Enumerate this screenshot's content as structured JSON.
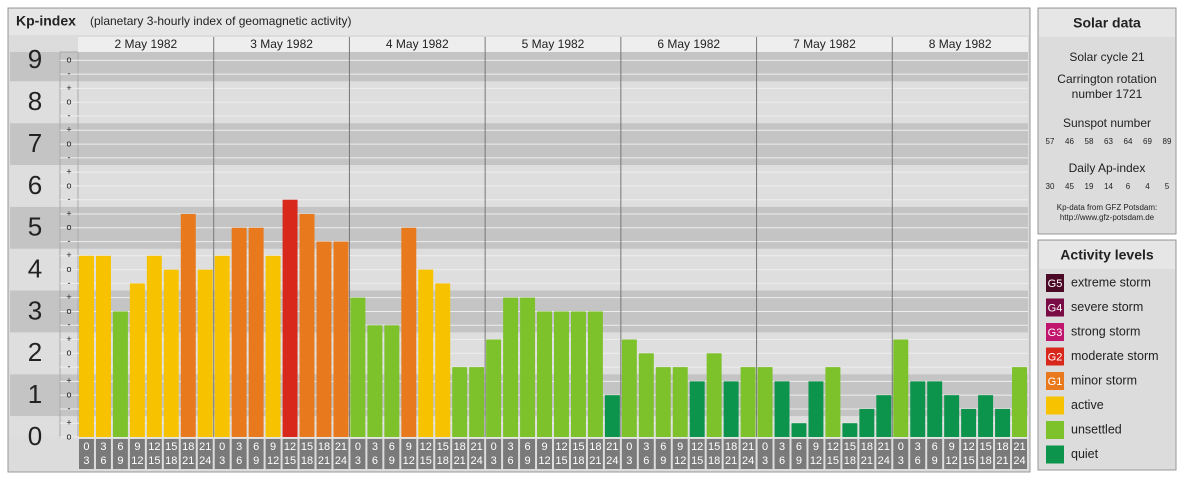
{
  "chart_data": {
    "type": "bar",
    "title": "Kp-index",
    "subtitle": "(planetary 3-hourly index of geomagnetic activity)",
    "ylim": [
      0,
      9.2
    ],
    "yticks": [
      0,
      1,
      2,
      3,
      4,
      5,
      6,
      7,
      8,
      9
    ],
    "ysubticks": [
      {
        "value": 0,
        "label": "o"
      },
      {
        "value": 0.33,
        "label": "+"
      },
      {
        "value": 0.67,
        "label": "-"
      },
      {
        "value": 1,
        "label": "o"
      },
      {
        "value": 1.33,
        "label": "+"
      },
      {
        "value": 1.67,
        "label": "-"
      },
      {
        "value": 2,
        "label": "o"
      },
      {
        "value": 2.33,
        "label": "+"
      },
      {
        "value": 2.67,
        "label": "-"
      },
      {
        "value": 3,
        "label": "o"
      },
      {
        "value": 3.33,
        "label": "+"
      },
      {
        "value": 3.67,
        "label": "-"
      },
      {
        "value": 4,
        "label": "o"
      },
      {
        "value": 4.33,
        "label": "+"
      },
      {
        "value": 4.67,
        "label": "-"
      },
      {
        "value": 5,
        "label": "o"
      },
      {
        "value": 5.33,
        "label": "+"
      },
      {
        "value": 5.67,
        "label": "-"
      },
      {
        "value": 6,
        "label": "o"
      },
      {
        "value": 6.33,
        "label": "+"
      },
      {
        "value": 6.67,
        "label": "-"
      },
      {
        "value": 7,
        "label": "o"
      },
      {
        "value": 7.33,
        "label": "+"
      },
      {
        "value": 7.67,
        "label": "-"
      },
      {
        "value": 8,
        "label": "o"
      },
      {
        "value": 8.33,
        "label": "+"
      },
      {
        "value": 8.67,
        "label": "-"
      },
      {
        "value": 9,
        "label": "o"
      }
    ],
    "grid": true,
    "hours": [
      [
        "0",
        "3"
      ],
      [
        "3",
        "6"
      ],
      [
        "6",
        "9"
      ],
      [
        "9",
        "12"
      ],
      [
        "12",
        "15"
      ],
      [
        "15",
        "18"
      ],
      [
        "18",
        "21"
      ],
      [
        "21",
        "24"
      ]
    ],
    "days": [
      {
        "label": "2 May 1982",
        "values": [
          4.33,
          4.33,
          3,
          3.67,
          4.33,
          4,
          5.33,
          4
        ],
        "colors": [
          "#f7c300",
          "#f7c300",
          "#7dc22b",
          "#f7c300",
          "#f7c300",
          "#f7c300",
          "#e8791d",
          "#f7c300"
        ]
      },
      {
        "label": "3 May 1982",
        "values": [
          4.33,
          5,
          5,
          4.33,
          5.67,
          5.33,
          4.67,
          4.67
        ],
        "colors": [
          "#f7c300",
          "#e8791d",
          "#e8791d",
          "#f7c300",
          "#d8281c",
          "#e8791d",
          "#e8791d",
          "#e8791d"
        ]
      },
      {
        "label": "4 May 1982",
        "values": [
          3.33,
          2.67,
          2.67,
          5,
          4,
          3.67,
          1.67,
          1.67
        ],
        "colors": [
          "#7dc22b",
          "#7dc22b",
          "#7dc22b",
          "#e8791d",
          "#f7c300",
          "#f7c300",
          "#7dc22b",
          "#7dc22b"
        ]
      },
      {
        "label": "5 May 1982",
        "values": [
          2.33,
          3.33,
          3.33,
          3,
          3,
          3,
          3,
          1
        ],
        "colors": [
          "#7dc22b",
          "#7dc22b",
          "#7dc22b",
          "#7dc22b",
          "#7dc22b",
          "#7dc22b",
          "#7dc22b",
          "#0d944c"
        ]
      },
      {
        "label": "6 May 1982",
        "values": [
          2.33,
          2,
          1.67,
          1.67,
          1.33,
          2,
          1.33,
          1.67
        ],
        "colors": [
          "#7dc22b",
          "#7dc22b",
          "#7dc22b",
          "#7dc22b",
          "#0d944c",
          "#7dc22b",
          "#0d944c",
          "#7dc22b"
        ]
      },
      {
        "label": "7 May 1982",
        "values": [
          1.67,
          1.33,
          0.33,
          1.33,
          1.67,
          0.33,
          0.67,
          1
        ],
        "colors": [
          "#7dc22b",
          "#0d944c",
          "#0d944c",
          "#0d944c",
          "#7dc22b",
          "#0d944c",
          "#0d944c",
          "#0d944c"
        ]
      },
      {
        "label": "8 May 1982",
        "values": [
          2.33,
          1.33,
          1.33,
          1,
          0.67,
          1,
          0.67,
          1.67
        ],
        "colors": [
          "#7dc22b",
          "#0d944c",
          "#0d944c",
          "#0d944c",
          "#0d944c",
          "#0d944c",
          "#0d944c",
          "#7dc22b"
        ]
      }
    ]
  },
  "solar": {
    "title": "Solar data",
    "cycle": "Solar cycle 21",
    "carrington": "Carrington rotation number 1721",
    "sunspot_title": "Sunspot number",
    "sunspots": [
      57,
      46,
      58,
      63,
      64,
      69,
      89
    ],
    "ap_title": "Daily Ap-index",
    "ap": [
      30,
      45,
      19,
      14,
      6,
      4,
      5
    ],
    "source": "Kp-data from GFZ Potsdam:",
    "url": "http://www.gfz-potsdam.de"
  },
  "legend": {
    "title": "Activity levels",
    "items": [
      {
        "code": "G5",
        "label": "extreme storm",
        "color": "#4a0a26"
      },
      {
        "code": "G4",
        "label": "severe storm",
        "color": "#7a0c45"
      },
      {
        "code": "G3",
        "label": "strong storm",
        "color": "#c0146d"
      },
      {
        "code": "G2",
        "label": "moderate storm",
        "color": "#d8281c"
      },
      {
        "code": "G1",
        "label": "minor storm",
        "color": "#e8791d"
      },
      {
        "code": null,
        "label": "active",
        "color": "#f7c300"
      },
      {
        "code": null,
        "label": "unsettled",
        "color": "#7dc22b"
      },
      {
        "code": null,
        "label": "quiet",
        "color": "#0d944c"
      }
    ]
  }
}
